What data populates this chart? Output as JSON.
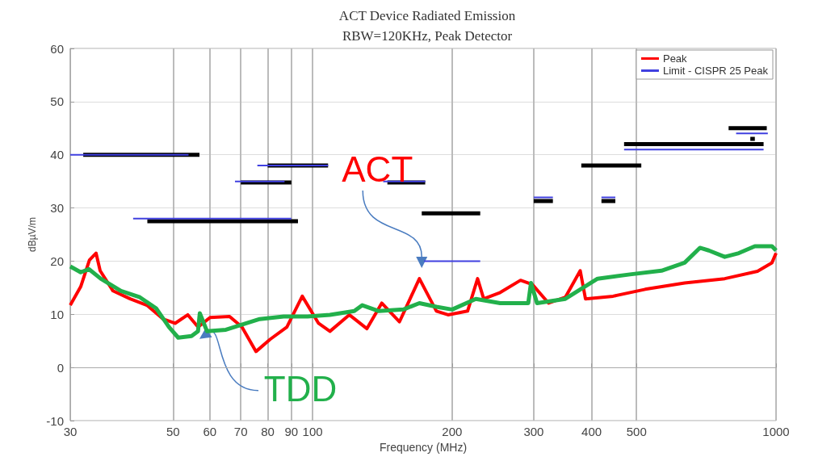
{
  "chart_data": {
    "type": "line",
    "title": "ACT Device Radiated Emission",
    "subtitle": "RBW=120KHz, Peak Detector",
    "xlabel": "Frequency (MHz)",
    "ylabel": "dBµV/m",
    "log": "x",
    "xlim": [
      30,
      1000
    ],
    "xticks": [
      30,
      50,
      60,
      70,
      80,
      90,
      100,
      200,
      300,
      400,
      500,
      1000
    ],
    "ylim": [
      -10,
      60
    ],
    "yticks": [
      -10,
      0,
      10,
      20,
      30,
      40,
      50,
      60
    ],
    "grid": true,
    "legend": "top right",
    "marker": "none",
    "line_style": "solid",
    "series": [
      {
        "name": "Peak",
        "color": "#ff0000",
        "x": [
          30,
          31.6,
          33,
          34.1,
          34.8,
          37.1,
          40.4,
          43.9,
          47.6,
          50.5,
          53.8,
          56.6,
          60.1,
          66.2,
          70.4,
          75.5,
          81,
          88,
          95,
          103,
          109,
          120,
          131,
          141,
          154,
          170,
          185,
          196,
          216,
          227,
          234,
          254,
          281,
          298,
          323,
          351,
          378,
          388,
          445,
          522,
          635,
          775,
          912,
          980,
          1000
        ],
        "values": [
          11.7,
          15.2,
          20.2,
          21.5,
          18.2,
          14.4,
          12.9,
          11.7,
          9.1,
          8.3,
          9.9,
          7.6,
          9.4,
          9.6,
          7.6,
          3.0,
          5.3,
          7.6,
          13.4,
          8.3,
          6.8,
          9.9,
          7.3,
          12.1,
          8.6,
          16.7,
          10.6,
          9.9,
          10.6,
          16.7,
          12.9,
          14.1,
          16.4,
          15.6,
          12.1,
          13.2,
          18.2,
          12.9,
          13.4,
          14.7,
          15.9,
          16.7,
          18.1,
          19.7,
          21.5
        ]
      },
      {
        "name": "Limit - CISPR 25 Peak",
        "color": "#4040e0",
        "x": [
          30,
          54,
          48,
          41,
          90,
          70,
          68,
          87,
          80,
          76,
          108,
          120,
          142,
          175,
          174.5,
          174,
          230,
          260,
          300,
          330,
          380,
          420,
          450,
          460,
          470,
          940,
          880,
          820,
          960
        ],
        "values": [
          40,
          40,
          null,
          28,
          28,
          null,
          35,
          35,
          null,
          38,
          38,
          null,
          35,
          35,
          null,
          20,
          20,
          null,
          32,
          32,
          null,
          32,
          32,
          null,
          41,
          41,
          null,
          44,
          44
        ]
      },
      {
        "color": "#000000",
        "x": [
          32,
          57,
          50,
          44,
          93,
          75,
          70,
          90,
          85,
          80,
          108,
          125,
          145,
          175,
          173,
          172,
          230,
          260,
          300,
          330,
          350,
          380,
          512,
          430,
          420,
          450,
          460,
          470,
          940,
          860,
          790,
          955,
          900,
          880,
          900
        ],
        "values": [
          40,
          40,
          null,
          27.5,
          27.5,
          null,
          34.8,
          34.8,
          null,
          38,
          38,
          null,
          34.8,
          34.8,
          null,
          29,
          29,
          null,
          31.3,
          31.3,
          null,
          38,
          38,
          null,
          31.3,
          31.3,
          null,
          42,
          42,
          null,
          45,
          45,
          null,
          43,
          43
        ]
      },
      {
        "color": "#22b04b",
        "x": [
          30,
          31.6,
          32.9,
          34.9,
          38.6,
          42.4,
          46,
          49,
          51.3,
          54.8,
          56.6,
          57.1,
          59.2,
          65,
          76.9,
          86.6,
          97.5,
          109,
          123,
          128,
          139,
          157,
          170,
          185,
          200,
          225,
          254,
          292,
          296,
          305,
          351,
          412,
          484,
          566,
          635,
          685,
          716,
          775,
          831,
          900,
          980,
          1000
        ],
        "values": [
          19.0,
          17.9,
          18.5,
          16.7,
          14.4,
          13.2,
          11.1,
          7.6,
          5.6,
          5.9,
          6.8,
          10.2,
          6.8,
          7.1,
          9.1,
          9.6,
          9.6,
          9.9,
          10.6,
          11.7,
          10.6,
          10.9,
          12.1,
          11.4,
          10.9,
          12.9,
          12.1,
          12.1,
          15.9,
          12.1,
          12.9,
          16.7,
          17.5,
          18.2,
          19.7,
          22.5,
          22.0,
          20.8,
          21.5,
          22.8,
          22.8,
          22.0
        ]
      }
    ],
    "annotations": [
      {
        "text": "ACT",
        "x": 172,
        "y": 17.5
      },
      {
        "text": "TDD",
        "x": 57,
        "y": 6.3
      }
    ]
  }
}
